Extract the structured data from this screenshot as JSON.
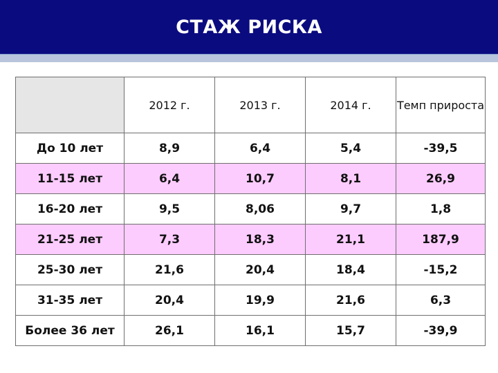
{
  "title": "СТАЖ РИСКА",
  "colors": {
    "title_bar": "#0b0b80",
    "stripe": "#b8c5dc",
    "alt_row": "#fdccff",
    "header_corner": "#e6e6e6"
  },
  "table": {
    "headers": [
      "",
      "2012 г.",
      "2013 г.",
      "2014 г.",
      "Темп прироста"
    ],
    "rows": [
      [
        "До 10 лет",
        "8,9",
        "6,4",
        "5,4",
        "-39,5"
      ],
      [
        "11-15 лет",
        "6,4",
        "10,7",
        "8,1",
        "26,9"
      ],
      [
        "16-20 лет",
        "9,5",
        "8,06",
        "9,7",
        "1,8"
      ],
      [
        "21-25 лет",
        "7,3",
        "18,3",
        "21,1",
        "187,9"
      ],
      [
        "25-30 лет",
        "21,6",
        "20,4",
        "18,4",
        "-15,2"
      ],
      [
        "31-35 лет",
        "20,4",
        "19,9",
        "21,6",
        "6,3"
      ],
      [
        "Более 36 лет",
        "26,1",
        "16,1",
        "15,7",
        "-39,9"
      ]
    ]
  }
}
